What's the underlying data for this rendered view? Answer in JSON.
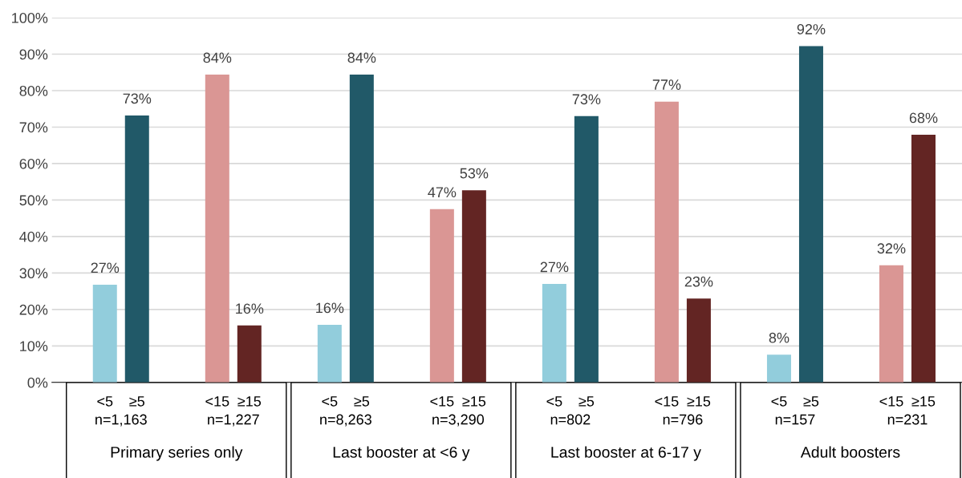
{
  "chart_data": {
    "type": "bar",
    "categories": [
      "<5",
      "≥5",
      "<15",
      "≥15",
      "<5",
      "≥5",
      "<15",
      "≥15",
      "<5",
      "≥5",
      "<15",
      "≥15",
      "<5",
      "≥5",
      "<15",
      "≥15"
    ],
    "values": [
      26.8,
      73.2,
      84.4,
      15.6,
      15.8,
      84.4,
      47.5,
      52.7,
      27.0,
      73.0,
      77.0,
      23.0,
      7.6,
      92.2,
      32.1,
      67.9
    ],
    "value_labels": [
      "27%",
      "73%",
      "84%",
      "16%",
      "16%",
      "84%",
      "47%",
      "53%",
      "27%",
      "73%",
      "77%",
      "23%",
      "8%",
      "92%",
      "32%",
      "68%"
    ],
    "colors": [
      "#92cddc",
      "#215968",
      "#da9694",
      "#632523",
      "#92cddc",
      "#215968",
      "#da9694",
      "#632523",
      "#92cddc",
      "#215968",
      "#da9694",
      "#632523",
      "#92cddc",
      "#215968",
      "#da9694",
      "#632523"
    ],
    "ylim": [
      0,
      100
    ],
    "yticks": [
      {
        "value": 0,
        "label": "0%"
      },
      {
        "value": 10,
        "label": "10%"
      },
      {
        "value": 20,
        "label": "20%"
      },
      {
        "value": 30,
        "label": "30%"
      },
      {
        "value": 40,
        "label": "40%"
      },
      {
        "value": 50,
        "label": "50%"
      },
      {
        "value": 60,
        "label": "60%"
      },
      {
        "value": 70,
        "label": "70%"
      },
      {
        "value": 80,
        "label": "80%"
      },
      {
        "value": 90,
        "label": "90%"
      },
      {
        "value": 100,
        "label": "100%"
      }
    ],
    "grid": "y",
    "annotations": [
      "n=1,163",
      "n=1,227",
      "n=8,263",
      "n=3,290",
      "n=802",
      "n=796",
      "n=157",
      "n=231",
      "Primary series only",
      "Last booster at <6 y",
      "Last booster at 6-17 y",
      "Adult boosters"
    ]
  }
}
